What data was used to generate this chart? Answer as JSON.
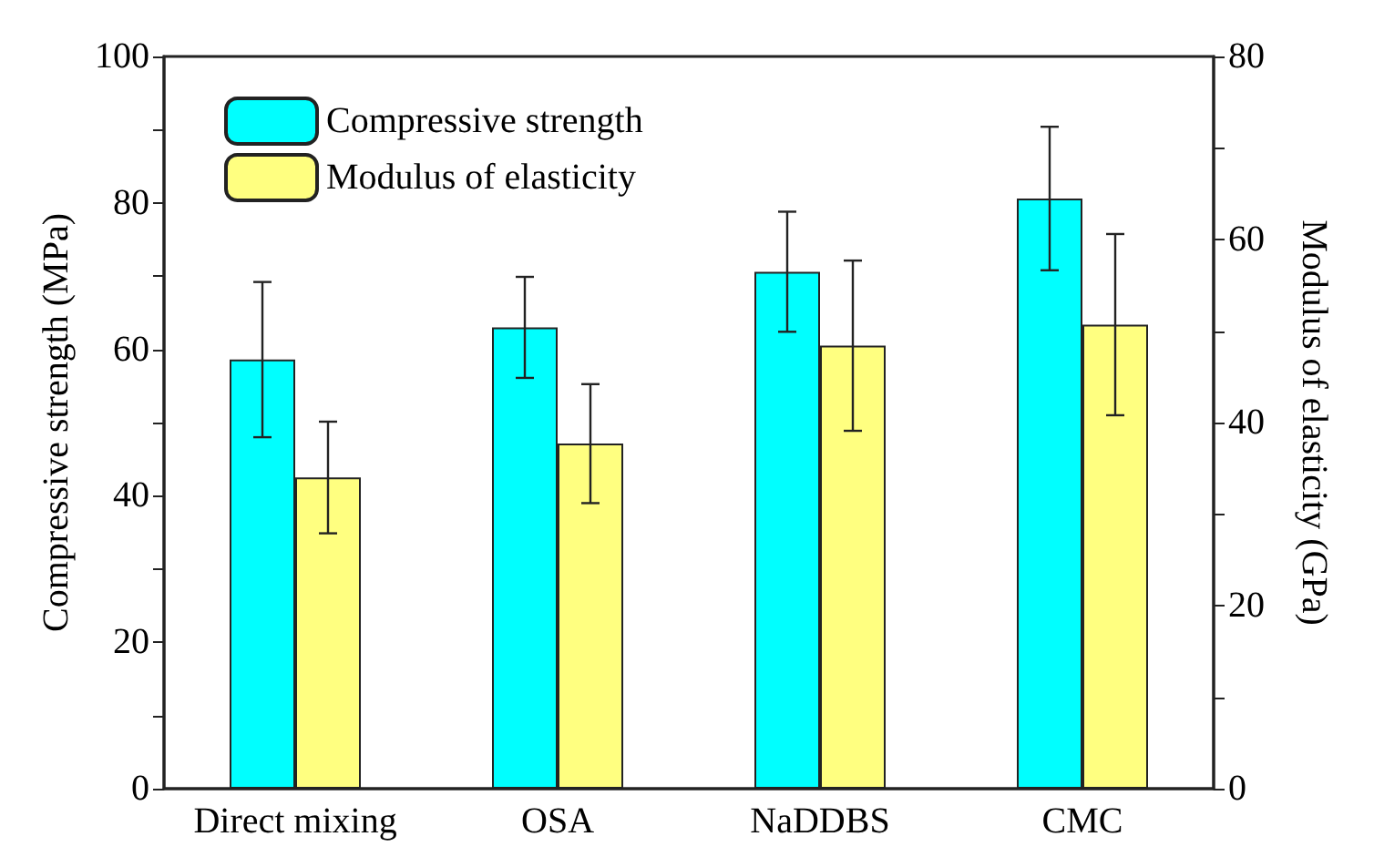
{
  "chart_data": {
    "type": "bar",
    "categories": [
      "Direct mixing",
      "OSA",
      "NaDDBS",
      "CMC"
    ],
    "ylabel": "Compressive strength (MPa)",
    "y2label": "Modulus of elasticity (GPa)",
    "ylim": [
      0,
      100
    ],
    "yticks": [
      0,
      {
        "value": 10,
        "label": null
      },
      20,
      {
        "value": 30,
        "label": null
      },
      40,
      {
        "value": 50,
        "label": null
      },
      60,
      {
        "value": 70,
        "label": null
      },
      80,
      {
        "value": 90,
        "label": null
      },
      100
    ],
    "y2lim": [
      0,
      80
    ],
    "y2ticks": [
      0,
      {
        "value": 10,
        "label": null
      },
      20,
      {
        "value": 30,
        "label": null
      },
      40,
      {
        "value": 50,
        "label": null
      },
      60,
      {
        "value": 70,
        "label": null
      },
      80
    ],
    "legend": "top left",
    "series": [
      {
        "name": "Compressive strength",
        "color": "#00ffff",
        "values": [
          58.6,
          63.0,
          70.6,
          80.6
        ],
        "errors": [
          10.6,
          6.9,
          8.2,
          9.8
        ]
      },
      {
        "name": "Modulus of elasticity",
        "color": "#ffff80",
        "axis": "y2",
        "values": [
          34.0,
          37.7,
          48.4,
          50.7
        ],
        "errors": [
          6.1,
          6.5,
          9.3,
          9.9
        ]
      }
    ]
  }
}
